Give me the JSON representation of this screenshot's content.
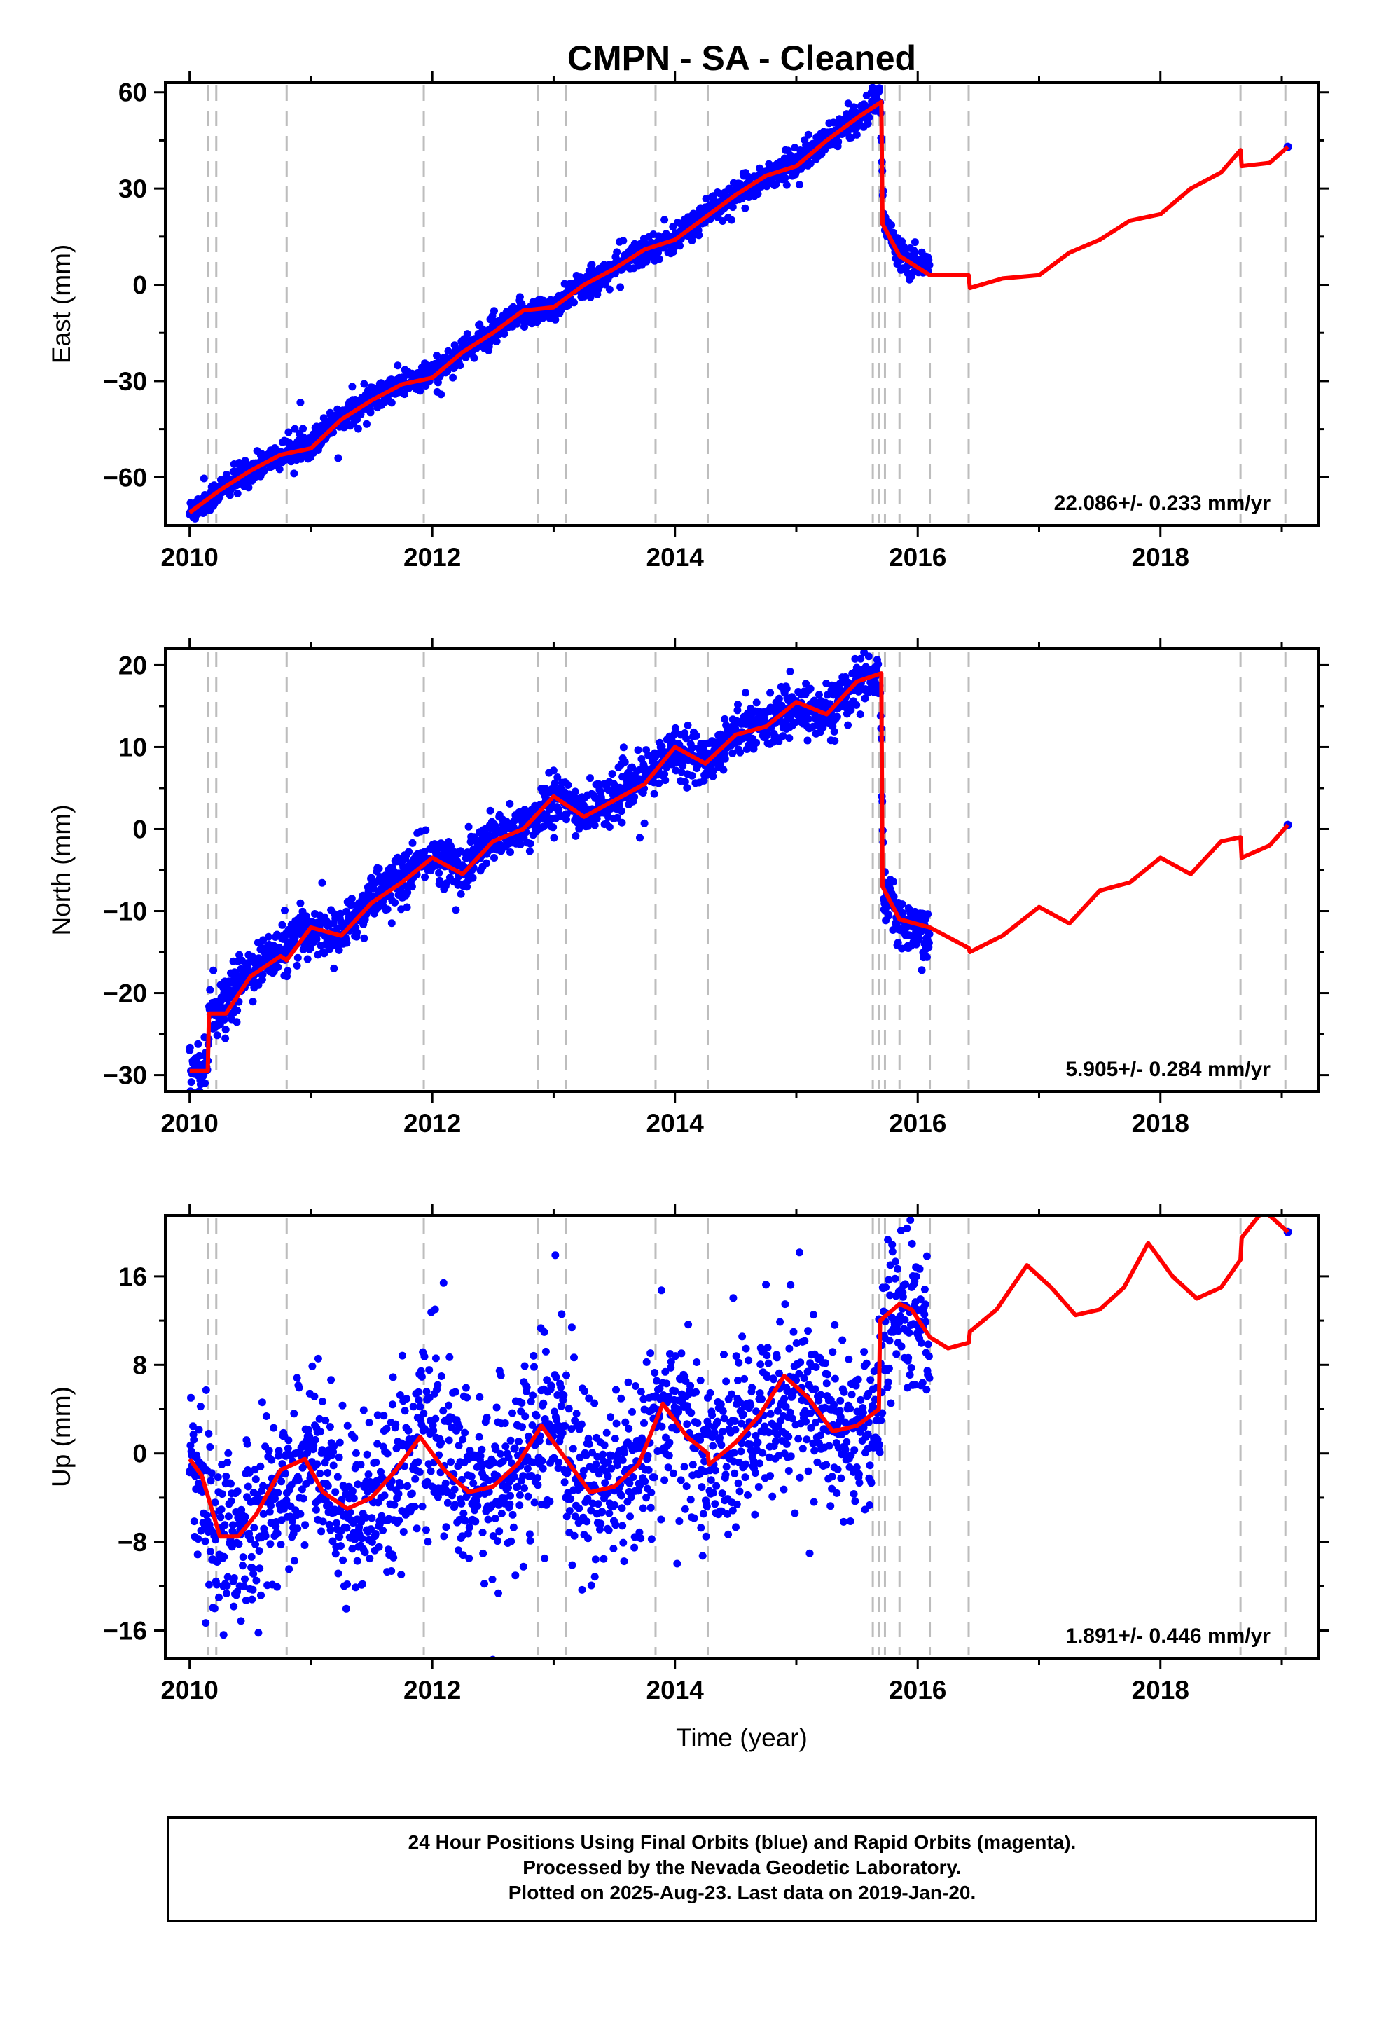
{
  "chart_data": [
    {
      "type": "scatter",
      "panel": "east",
      "title": "CMPN  - SA - Cleaned",
      "xlabel": "",
      "ylabel": "East (mm)",
      "xlim": [
        2009.8,
        2019.3
      ],
      "ylim": [
        -75,
        63
      ],
      "xticks": [
        2010,
        2012,
        2014,
        2016,
        2018
      ],
      "yticks": [
        60,
        30,
        0,
        -30,
        -60
      ],
      "ytick_labels": [
        "60",
        "30",
        "0",
        "−30",
        "−60"
      ],
      "rate": "22.086+/- 0.233 mm/yr",
      "equipment_changes": [
        2010.15,
        2010.22,
        2010.8,
        2011.93,
        2012.87,
        2013.1,
        2013.84,
        2014.27,
        2015.63,
        2015.68,
        2015.73,
        2015.85,
        2016.1,
        2016.42,
        2018.66,
        2019.03
      ],
      "series": [
        {
          "name": "Final Orbits",
          "color": "#0000ff",
          "x": [
            2010.0,
            2010.25,
            2010.5,
            2010.75,
            2011.0,
            2011.25,
            2011.5,
            2011.75,
            2012.0,
            2012.25,
            2012.5,
            2012.75,
            2013.0,
            2013.25,
            2013.5,
            2013.75,
            2014.0,
            2014.25,
            2014.5,
            2014.75,
            2015.0,
            2015.25,
            2015.5,
            2015.69,
            2015.72,
            2015.85,
            2016.0,
            2016.1,
            2019.05
          ],
          "y": [
            -71,
            -64,
            -58,
            -53,
            -49,
            -41,
            -36,
            -31,
            -28,
            -21,
            -15,
            -9,
            -7,
            0,
            5,
            11,
            14,
            22,
            28,
            34,
            38,
            45,
            52,
            58,
            20,
            10,
            7,
            7,
            43
          ],
          "noise": 2.0
        },
        {
          "name": "Model",
          "color": "#ff0000",
          "x": [
            2010.0,
            2010.25,
            2010.5,
            2010.75,
            2011.0,
            2011.25,
            2011.5,
            2011.75,
            2012.0,
            2012.25,
            2012.5,
            2012.75,
            2013.0,
            2013.25,
            2013.5,
            2013.75,
            2014.0,
            2014.25,
            2014.5,
            2014.75,
            2015.0,
            2015.25,
            2015.5,
            2015.7,
            2015.71,
            2015.85,
            2016.1,
            2016.42,
            2016.43,
            2016.7,
            2017.0,
            2017.25,
            2017.5,
            2017.75,
            2018.0,
            2018.25,
            2018.5,
            2018.66,
            2018.67,
            2018.9,
            2019.05
          ],
          "y": [
            -71,
            -64,
            -58,
            -53,
            -51,
            -42,
            -36,
            -31,
            -29,
            -21,
            -15,
            -8,
            -7,
            0,
            5,
            11,
            14,
            21,
            28,
            34,
            37,
            45,
            52,
            57,
            19,
            9,
            3,
            3,
            -1,
            2,
            3,
            10,
            14,
            20,
            22,
            30,
            35,
            42,
            37,
            38,
            43
          ]
        }
      ]
    },
    {
      "type": "scatter",
      "panel": "north",
      "xlabel": "",
      "ylabel": "North (mm)",
      "xlim": [
        2009.8,
        2019.3
      ],
      "ylim": [
        -32,
        22
      ],
      "xticks": [
        2010,
        2012,
        2014,
        2016,
        2018
      ],
      "yticks": [
        20,
        10,
        0,
        -10,
        -20,
        -30
      ],
      "ytick_labels": [
        "20",
        "10",
        "0",
        "−10",
        "−20",
        "−30"
      ],
      "rate": "5.905+/- 0.284 mm/yr",
      "equipment_changes": [
        2010.15,
        2010.22,
        2010.8,
        2011.93,
        2012.87,
        2013.1,
        2013.84,
        2014.27,
        2015.63,
        2015.68,
        2015.73,
        2015.85,
        2016.1,
        2016.42,
        2018.66,
        2019.03
      ],
      "series": [
        {
          "name": "Final Orbits",
          "color": "#0000ff",
          "x": [
            2010.0,
            2010.15,
            2010.16,
            2010.25,
            2010.5,
            2010.75,
            2011.0,
            2011.25,
            2011.5,
            2011.75,
            2012.0,
            2012.25,
            2012.5,
            2012.75,
            2013.0,
            2013.25,
            2013.5,
            2013.75,
            2014.0,
            2014.25,
            2014.5,
            2014.75,
            2015.0,
            2015.25,
            2015.5,
            2015.69,
            2015.72,
            2015.85,
            2016.0,
            2016.1,
            2019.05
          ],
          "y": [
            -29,
            -29,
            -22,
            -22,
            -17,
            -15,
            -12,
            -13,
            -8,
            -6,
            -3,
            -5,
            -1,
            0,
            4,
            2,
            4,
            6,
            10,
            8,
            12,
            13,
            15,
            14,
            18,
            19,
            -8,
            -11,
            -12,
            -13,
            0.5
          ],
          "noise": 1.4
        },
        {
          "name": "Model",
          "color": "#ff0000",
          "x": [
            2010.0,
            2010.15,
            2010.16,
            2010.3,
            2010.5,
            2010.75,
            2010.8,
            2011.0,
            2011.25,
            2011.5,
            2011.75,
            2012.0,
            2012.25,
            2012.5,
            2012.75,
            2013.0,
            2013.25,
            2013.5,
            2013.75,
            2014.0,
            2014.25,
            2014.5,
            2014.75,
            2015.0,
            2015.25,
            2015.5,
            2015.7,
            2015.71,
            2015.85,
            2016.1,
            2016.42,
            2016.43,
            2016.7,
            2017.0,
            2017.25,
            2017.5,
            2017.75,
            2018.0,
            2018.25,
            2018.5,
            2018.66,
            2018.67,
            2018.9,
            2019.05
          ],
          "y": [
            -29.5,
            -29.5,
            -22.5,
            -22.5,
            -18,
            -15.5,
            -16,
            -12,
            -13,
            -9,
            -6.5,
            -3.5,
            -5.5,
            -1.5,
            0,
            4,
            1.5,
            3.5,
            5.5,
            10,
            8,
            11.5,
            12.5,
            15.5,
            14,
            18,
            19,
            -7,
            -11,
            -12,
            -14.5,
            -15,
            -13,
            -9.5,
            -11.5,
            -7.5,
            -6.5,
            -3.5,
            -5.5,
            -1.5,
            -1,
            -3.5,
            -2,
            0.5
          ]
        }
      ]
    },
    {
      "type": "scatter",
      "panel": "up",
      "xlabel": "Time (year)",
      "ylabel": "Up (mm)",
      "xlim": [
        2009.8,
        2019.3
      ],
      "ylim": [
        -18.5,
        21.5
      ],
      "xticks": [
        2010,
        2012,
        2014,
        2016,
        2018
      ],
      "yticks": [
        16,
        8,
        0,
        -8,
        -16
      ],
      "ytick_labels": [
        "16",
        "8",
        "0",
        "−8",
        "−16"
      ],
      "rate": "1.891+/- 0.446 mm/yr",
      "equipment_changes": [
        2010.15,
        2010.22,
        2010.8,
        2011.93,
        2012.87,
        2013.1,
        2013.84,
        2014.27,
        2015.63,
        2015.68,
        2015.73,
        2015.85,
        2016.1,
        2016.42,
        2018.66,
        2019.03
      ],
      "series": [
        {
          "name": "Final Orbits",
          "color": "#0000ff",
          "x": [
            2010.0,
            2010.25,
            2010.5,
            2010.75,
            2011.0,
            2011.25,
            2011.5,
            2011.75,
            2012.0,
            2012.25,
            2012.5,
            2012.75,
            2013.0,
            2013.25,
            2013.5,
            2013.75,
            2014.0,
            2014.25,
            2014.5,
            2014.75,
            2015.0,
            2015.25,
            2015.5,
            2015.69,
            2015.72,
            2015.85,
            2016.0,
            2016.1,
            2019.05
          ],
          "y": [
            -1,
            -8,
            -7,
            -3,
            0,
            -5,
            -4,
            -1,
            2,
            -3,
            -3,
            0,
            2,
            -3,
            -3,
            0,
            4,
            -1,
            1,
            4,
            6,
            3,
            2,
            4,
            10,
            13,
            12,
            11,
            20
          ],
          "noise": 3.6
        },
        {
          "name": "Model",
          "color": "#ff0000",
          "x": [
            2010.0,
            2010.1,
            2010.25,
            2010.4,
            2010.55,
            2010.75,
            2010.95,
            2011.1,
            2011.3,
            2011.5,
            2011.7,
            2011.9,
            2012.1,
            2012.3,
            2012.5,
            2012.7,
            2012.9,
            2013.1,
            2013.3,
            2013.5,
            2013.7,
            2013.9,
            2014.1,
            2014.27,
            2014.28,
            2014.5,
            2014.7,
            2014.9,
            2015.1,
            2015.3,
            2015.5,
            2015.68,
            2015.69,
            2015.85,
            2015.95,
            2016.1,
            2016.25,
            2016.42,
            2016.43,
            2016.65,
            2016.9,
            2017.1,
            2017.3,
            2017.5,
            2017.7,
            2017.9,
            2018.1,
            2018.3,
            2018.5,
            2018.66,
            2018.67,
            2018.85,
            2019.05
          ],
          "y": [
            -0.5,
            -2,
            -7.5,
            -7.5,
            -5.5,
            -1.5,
            -0.5,
            -3.5,
            -5,
            -4,
            -1.5,
            1.5,
            -1.5,
            -3.5,
            -3,
            -1,
            2.5,
            -0.5,
            -3.5,
            -3,
            -1,
            4.5,
            1.5,
            0,
            -1,
            1,
            3.5,
            7,
            5,
            2,
            2.5,
            4,
            12,
            13.5,
            13,
            10.5,
            9.5,
            10,
            11,
            13,
            17,
            15,
            12.5,
            13,
            15,
            19,
            16,
            14,
            15,
            17.5,
            19.5,
            22,
            20
          ]
        }
      ]
    }
  ],
  "footer": {
    "line1": "24 Hour Positions Using Final Orbits (blue) and Rapid Orbits (magenta).",
    "line2": "Processed by the Nevada Geodetic Laboratory.",
    "line3": "Plotted on 2025-Aug-23. Last data on 2019-Jan-20."
  }
}
